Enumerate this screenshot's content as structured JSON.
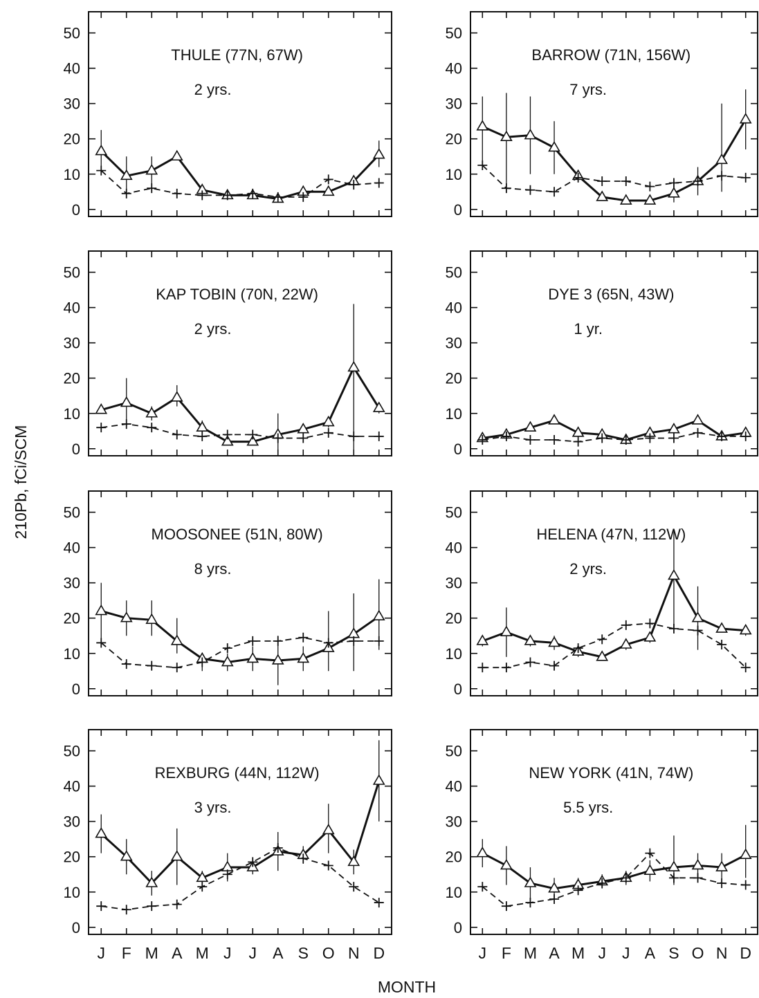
{
  "figure": {
    "ylabel": "210Pb,  fCi/SCM",
    "xlabel": "MONTH"
  },
  "chart_data": [
    {
      "type": "line",
      "title": "THULE (77N, 67W)",
      "subtitle": "2 yrs.",
      "categories": [
        "J",
        "F",
        "M",
        "A",
        "M",
        "J",
        "J",
        "A",
        "S",
        "O",
        "N",
        "D"
      ],
      "yticks": [
        0,
        10,
        20,
        30,
        40,
        50
      ],
      "ylim": [
        -2,
        56
      ],
      "series": [
        {
          "marker": "triangle",
          "style": "solid",
          "values": [
            16.5,
            9.5,
            11,
            15,
            5.5,
            4,
            4,
            3,
            5,
            5,
            8,
            15.5
          ],
          "err_low": [
            10.5,
            5,
            7,
            14,
            5,
            3,
            3,
            2,
            4,
            4,
            7,
            12
          ],
          "err_high": [
            22.5,
            15,
            15,
            16,
            7,
            5,
            5,
            4,
            6,
            6,
            9,
            19.5
          ]
        },
        {
          "marker": "plus",
          "style": "dashed",
          "values": [
            11,
            4.5,
            6,
            4.5,
            4,
            4,
            4.5,
            3.5,
            3.5,
            8.5,
            7,
            7.5
          ]
        }
      ]
    },
    {
      "type": "line",
      "title": "BARROW (71N, 156W)",
      "subtitle": "7 yrs.",
      "categories": [
        "J",
        "F",
        "M",
        "A",
        "M",
        "J",
        "J",
        "A",
        "S",
        "O",
        "N",
        "D"
      ],
      "yticks": [
        0,
        10,
        20,
        30,
        40,
        50
      ],
      "ylim": [
        -2,
        56
      ],
      "series": [
        {
          "marker": "triangle",
          "style": "solid",
          "values": [
            23.5,
            20.5,
            21,
            17.5,
            9.5,
            3.5,
            2.5,
            2.5,
            4.5,
            8,
            14,
            25.5
          ],
          "err_low": [
            12,
            7,
            10,
            10,
            8,
            2.5,
            1.5,
            1.5,
            2,
            4,
            5,
            17
          ],
          "err_high": [
            32,
            33,
            32,
            25,
            11,
            5,
            3.5,
            3.5,
            8,
            12,
            30,
            34
          ]
        },
        {
          "marker": "plus",
          "style": "dashed",
          "values": [
            12.5,
            6,
            5.5,
            5,
            9,
            8,
            8,
            6.5,
            7.5,
            8,
            9.5,
            9
          ]
        }
      ]
    },
    {
      "type": "line",
      "title": "KAP TOBIN (70N, 22W)",
      "subtitle": "2 yrs.",
      "categories": [
        "J",
        "F",
        "M",
        "A",
        "M",
        "J",
        "J",
        "A",
        "S",
        "O",
        "N",
        "D"
      ],
      "yticks": [
        0,
        10,
        20,
        30,
        40,
        50
      ],
      "ylim": [
        -2,
        56
      ],
      "series": [
        {
          "marker": "triangle",
          "style": "solid",
          "values": [
            11,
            13,
            10,
            14.5,
            6,
            2,
            2,
            4,
            5.5,
            7.5,
            23,
            11.5
          ],
          "err_low": [
            10,
            6,
            8,
            12,
            4,
            1,
            1,
            -1,
            4,
            6,
            -1,
            10
          ],
          "err_high": [
            12,
            20,
            12,
            18,
            8,
            3,
            3,
            10,
            7,
            9,
            41,
            13
          ]
        },
        {
          "marker": "plus",
          "style": "dashed",
          "values": [
            6,
            7,
            6,
            4,
            3.5,
            4,
            4,
            3,
            3,
            4.5,
            3.5,
            3.5
          ]
        }
      ]
    },
    {
      "type": "line",
      "title": "DYE 3 (65N, 43W)",
      "subtitle": "1 yr.",
      "categories": [
        "J",
        "F",
        "M",
        "A",
        "M",
        "J",
        "J",
        "A",
        "S",
        "O",
        "N",
        "D"
      ],
      "yticks": [
        0,
        10,
        20,
        30,
        40,
        50
      ],
      "ylim": [
        -2,
        56
      ],
      "series": [
        {
          "marker": "triangle",
          "style": "solid",
          "values": [
            3,
            4,
            6,
            8,
            4.5,
            4,
            2.5,
            4.5,
            5.5,
            8,
            3.5,
            4.5
          ],
          "err_low": [
            2,
            3,
            5,
            7,
            3.5,
            3,
            1.5,
            3.5,
            4.5,
            7,
            2.5,
            3.5
          ],
          "err_high": [
            4,
            5,
            7,
            9,
            5.5,
            5,
            3.5,
            5.5,
            6.5,
            9,
            4.5,
            5.5
          ]
        },
        {
          "marker": "plus",
          "style": "dashed",
          "values": [
            2.5,
            3.5,
            2.5,
            2.5,
            2,
            3,
            2.5,
            3,
            3,
            4.5,
            3.5,
            3.5
          ]
        }
      ]
    },
    {
      "type": "line",
      "title": "MOOSONEE (51N, 80W)",
      "subtitle": "8 yrs.",
      "categories": [
        "J",
        "F",
        "M",
        "A",
        "M",
        "J",
        "J",
        "A",
        "S",
        "O",
        "N",
        "D"
      ],
      "yticks": [
        0,
        10,
        20,
        30,
        40,
        50
      ],
      "ylim": [
        -2,
        56
      ],
      "series": [
        {
          "marker": "triangle",
          "style": "solid",
          "values": [
            22,
            20,
            19.5,
            13.5,
            8.5,
            7.5,
            8.5,
            8,
            8.5,
            11.5,
            15.5,
            20.5
          ],
          "err_low": [
            14,
            15,
            15,
            10,
            5,
            5,
            5,
            1,
            5,
            5,
            5,
            11
          ],
          "err_high": [
            30,
            25,
            25,
            20,
            10,
            10,
            12,
            15,
            12,
            22,
            27,
            31
          ]
        },
        {
          "marker": "plus",
          "style": "dashed",
          "values": [
            13,
            7,
            6.5,
            6,
            7.5,
            11.5,
            13.5,
            13.5,
            14.5,
            13,
            13.5,
            13.5
          ]
        }
      ]
    },
    {
      "type": "line",
      "title": "HELENA (47N, 112W)",
      "subtitle": "2 yrs.",
      "categories": [
        "J",
        "F",
        "M",
        "A",
        "M",
        "J",
        "J",
        "A",
        "S",
        "O",
        "N",
        "D"
      ],
      "yticks": [
        0,
        10,
        20,
        30,
        40,
        50
      ],
      "ylim": [
        -2,
        56
      ],
      "series": [
        {
          "marker": "triangle",
          "style": "solid",
          "values": [
            13.5,
            16,
            13.5,
            13,
            10.5,
            9,
            12.5,
            14.5,
            32,
            20,
            17,
            16.5
          ],
          "err_low": [
            12,
            9,
            12,
            11,
            9,
            8,
            11,
            13,
            17,
            11,
            16,
            15
          ],
          "err_high": [
            15,
            23,
            15,
            15,
            12,
            10,
            14,
            16,
            45,
            29,
            18,
            18
          ]
        },
        {
          "marker": "plus",
          "style": "dashed",
          "values": [
            6,
            6,
            7.5,
            6.5,
            11.5,
            14,
            18,
            18.5,
            17,
            16.5,
            12.5,
            6
          ]
        }
      ]
    },
    {
      "type": "line",
      "title": "REXBURG (44N, 112W)",
      "subtitle": "3 yrs.",
      "categories": [
        "J",
        "F",
        "M",
        "A",
        "M",
        "J",
        "J",
        "A",
        "S",
        "O",
        "N",
        "D"
      ],
      "yticks": [
        0,
        10,
        20,
        30,
        40,
        50
      ],
      "ylim": [
        -2,
        56
      ],
      "series": [
        {
          "marker": "triangle",
          "style": "solid",
          "values": [
            26.5,
            20,
            12.5,
            20,
            14,
            17,
            17,
            21.5,
            20.5,
            27.5,
            18.5,
            41.5
          ],
          "err_low": [
            21,
            15,
            9,
            12,
            11,
            13,
            15,
            16,
            18,
            21,
            15,
            30
          ],
          "err_high": [
            32,
            25,
            16,
            28,
            16,
            21,
            19,
            27,
            23,
            35,
            22,
            53
          ]
        },
        {
          "marker": "plus",
          "style": "dashed",
          "values": [
            6,
            5,
            6,
            6.5,
            11.5,
            15,
            18.5,
            22.5,
            19.5,
            17.5,
            11.5,
            7
          ]
        }
      ]
    },
    {
      "type": "line",
      "title": "NEW YORK (41N, 74W)",
      "subtitle": "5.5 yrs.",
      "categories": [
        "J",
        "F",
        "M",
        "A",
        "M",
        "J",
        "J",
        "A",
        "S",
        "O",
        "N",
        "D"
      ],
      "yticks": [
        0,
        10,
        20,
        30,
        40,
        50
      ],
      "ylim": [
        -2,
        56
      ],
      "series": [
        {
          "marker": "triangle",
          "style": "solid",
          "values": [
            21,
            17.5,
            12.5,
            11,
            12,
            13,
            14,
            16,
            17,
            17.5,
            17,
            20.5
          ],
          "err_low": [
            17,
            12,
            8,
            8,
            10,
            11,
            12,
            13,
            12,
            14,
            13,
            14
          ],
          "err_high": [
            25,
            23,
            17,
            14,
            14,
            15,
            16,
            19,
            26,
            21,
            21,
            29
          ]
        },
        {
          "marker": "plus",
          "style": "dashed",
          "values": [
            11.5,
            6,
            7,
            8,
            10.5,
            12.5,
            14,
            21,
            14,
            14,
            12.5,
            12
          ]
        }
      ]
    }
  ]
}
